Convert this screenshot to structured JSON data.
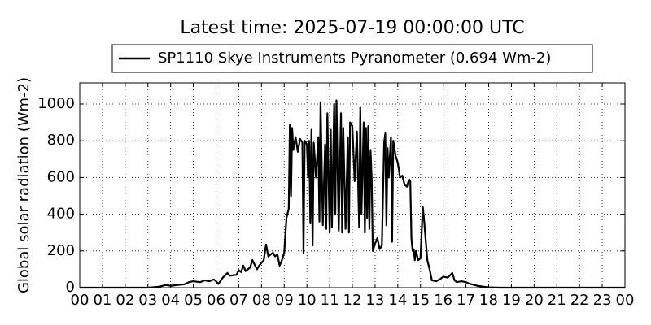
{
  "chart_data": {
    "type": "line",
    "title": "Latest time: 2025-07-19 00:00:00 UTC",
    "ylabel": "Global solar radiation (Wm-2)",
    "legend": "upper center",
    "grid": true,
    "xlim": [
      0,
      24
    ],
    "ylim": [
      0,
      1115
    ],
    "xticks": [
      {
        "value": 0,
        "label": "00"
      },
      {
        "value": 1,
        "label": "01"
      },
      {
        "value": 2,
        "label": "02"
      },
      {
        "value": 3,
        "label": "03"
      },
      {
        "value": 4,
        "label": "04"
      },
      {
        "value": 5,
        "label": "05"
      },
      {
        "value": 6,
        "label": "06"
      },
      {
        "value": 7,
        "label": "07"
      },
      {
        "value": 8,
        "label": "08"
      },
      {
        "value": 9,
        "label": "09"
      },
      {
        "value": 10,
        "label": "10"
      },
      {
        "value": 11,
        "label": "11"
      },
      {
        "value": 12,
        "label": "12"
      },
      {
        "value": 13,
        "label": "13"
      },
      {
        "value": 14,
        "label": "14"
      },
      {
        "value": 15,
        "label": "15"
      },
      {
        "value": 16,
        "label": "16"
      },
      {
        "value": 17,
        "label": "17"
      },
      {
        "value": 18,
        "label": "18"
      },
      {
        "value": 19,
        "label": "19"
      },
      {
        "value": 20,
        "label": "20"
      },
      {
        "value": 21,
        "label": "21"
      },
      {
        "value": 22,
        "label": "22"
      },
      {
        "value": 23,
        "label": "23"
      },
      {
        "value": 24,
        "label": "00"
      }
    ],
    "yticks": [
      0,
      200,
      400,
      600,
      800,
      1000
    ],
    "x": [
      0,
      3,
      3.5,
      3.8,
      4,
      4.3,
      4.6,
      4.8,
      5,
      5.3,
      5.5,
      5.7,
      5.9,
      6,
      6.1,
      6.3,
      6.5,
      6.6,
      6.9,
      7,
      7.1,
      7.2,
      7.3,
      7.5,
      7.6,
      7.8,
      7.9,
      8.1,
      8.2,
      8.3,
      8.5,
      8.6,
      8.7,
      8.8,
      8.9,
      9,
      9.1,
      9.2,
      9.25,
      9.3,
      9.35,
      9.4,
      9.5,
      9.6,
      9.7,
      9.8,
      9.85,
      9.9,
      10,
      10.05,
      10.1,
      10.15,
      10.2,
      10.25,
      10.3,
      10.4,
      10.5,
      10.55,
      10.6,
      10.7,
      10.8,
      10.85,
      10.9,
      11,
      11.05,
      11.1,
      11.2,
      11.25,
      11.3,
      11.4,
      11.5,
      11.55,
      11.6,
      11.7,
      11.8,
      11.85,
      11.9,
      12,
      12.1,
      12.2,
      12.3,
      12.35,
      12.4,
      12.5,
      12.55,
      12.6,
      12.65,
      12.7,
      12.75,
      12.8,
      12.85,
      12.9,
      13,
      13.1,
      13.2,
      13.3,
      13.4,
      13.45,
      13.5,
      13.55,
      13.6,
      13.7,
      13.75,
      13.8,
      13.9,
      14,
      14.1,
      14.2,
      14.3,
      14.4,
      14.5,
      14.55,
      14.6,
      14.65,
      14.7,
      14.75,
      14.8,
      14.9,
      15,
      15.1,
      15.15,
      15.3,
      15.4,
      15.5,
      15.7,
      15.9,
      16,
      16.2,
      16.4,
      16.5,
      16.6,
      16.8,
      17,
      17.2,
      17.5,
      17.8,
      18,
      18.5,
      24
    ],
    "series": [
      {
        "name": "SP1110 Skye Instruments Pyranometer (0.694 Wm-2)",
        "color": "#000000",
        "values": [
          0,
          0,
          5,
          15,
          10,
          15,
          18,
          30,
          35,
          30,
          40,
          35,
          45,
          35,
          20,
          55,
          80,
          65,
          70,
          95,
          85,
          120,
          90,
          110,
          150,
          100,
          120,
          150,
          235,
          170,
          190,
          170,
          180,
          120,
          150,
          190,
          380,
          430,
          890,
          500,
          870,
          750,
          820,
          740,
          810,
          790,
          190,
          800,
          780,
          600,
          800,
          350,
          860,
          230,
          790,
          600,
          820,
          360,
          1010,
          340,
          780,
          320,
          950,
          300,
          860,
          330,
          1000,
          400,
          1020,
          310,
          950,
          300,
          870,
          320,
          820,
          300,
          900,
          880,
          580,
          850,
          330,
          980,
          400,
          900,
          300,
          870,
          380,
          880,
          320,
          750,
          600,
          200,
          240,
          270,
          210,
          230,
          790,
          840,
          340,
          760,
          600,
          820,
          250,
          800,
          720,
          680,
          600,
          610,
          560,
          550,
          590,
          580,
          270,
          200,
          210,
          150,
          200,
          150,
          160,
          440,
          380,
          150,
          100,
          40,
          35,
          50,
          60,
          55,
          80,
          40,
          30,
          35,
          30,
          20,
          10,
          5,
          2,
          0,
          0
        ]
      }
    ]
  }
}
